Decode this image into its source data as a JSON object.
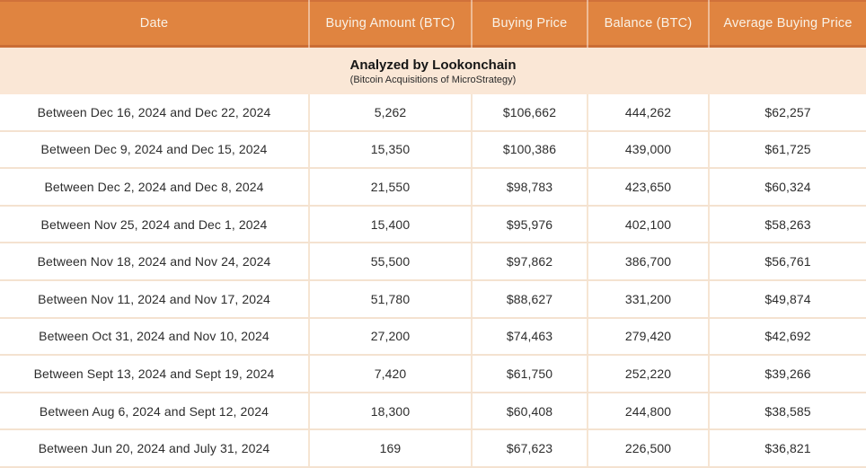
{
  "chart_data": {
    "type": "table",
    "title": "Analyzed by Lookonchain",
    "subtitle": "(Bitcoin Acquisitions of MicroStrategy)",
    "columns": [
      "Date",
      "Buying Amount (BTC)",
      "Buying Price",
      "Balance (BTC)",
      "Average Buying Price"
    ],
    "rows": [
      [
        "Between Dec 16, 2024 and Dec 22, 2024",
        "5,262",
        "$106,662",
        "444,262",
        "$62,257"
      ],
      [
        "Between Dec 9, 2024 and Dec 15, 2024",
        "15,350",
        "$100,386",
        "439,000",
        "$61,725"
      ],
      [
        "Between Dec 2, 2024 and Dec 8, 2024",
        "21,550",
        "$98,783",
        "423,650",
        "$60,324"
      ],
      [
        "Between Nov 25, 2024 and Dec 1, 2024",
        "15,400",
        "$95,976",
        "402,100",
        "$58,263"
      ],
      [
        "Between Nov 18, 2024 and Nov 24, 2024",
        "55,500",
        "$97,862",
        "386,700",
        "$56,761"
      ],
      [
        "Between Nov 11, 2024 and Nov 17, 2024",
        "51,780",
        "$88,627",
        "331,200",
        "$49,874"
      ],
      [
        "Between Oct 31, 2024 and Nov 10, 2024",
        "27,200",
        "$74,463",
        "279,420",
        "$42,692"
      ],
      [
        "Between Sept 13, 2024 and Sept 19, 2024",
        "7,420",
        "$61,750",
        "252,220",
        "$39,266"
      ],
      [
        "Between Aug 6, 2024 and Sept 12, 2024",
        "18,300",
        "$60,408",
        "244,800",
        "$38,585"
      ],
      [
        "Between Jun 20, 2024 and July 31, 2024",
        "169",
        "$67,623",
        "226,500",
        "$36,821"
      ]
    ],
    "colors": {
      "header_bg": "#E08440",
      "header_text": "#F9F2E7",
      "header_top_edge": "#D0713A",
      "header_bottom_edge": "#CA6D35",
      "caption_bg": "#FAE7D6",
      "grid_line": "#F4E2D0",
      "row_bg": "#FFFFFF",
      "body_text": "#2D2D2D"
    }
  }
}
